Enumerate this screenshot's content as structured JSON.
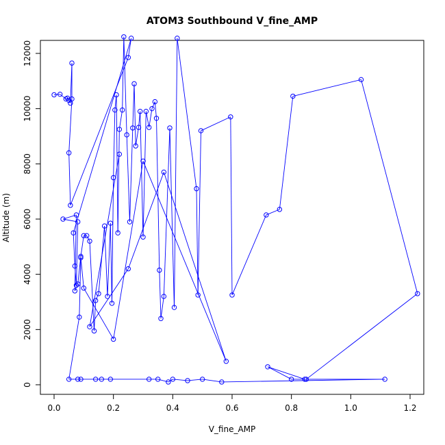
{
  "chart_data": {
    "type": "line",
    "title": "ATOM3 Southbound V_fine_AMP",
    "xlabel": "V_fine_AMP",
    "ylabel": "Altitude (m)",
    "xlim": [
      -0.05,
      1.25
    ],
    "ylim": [
      -500,
      13000
    ],
    "xticks": [
      "0.0",
      "0.2",
      "0.4",
      "0.6",
      "0.8",
      "1.0",
      "1.2"
    ],
    "yticks": [
      "0",
      "2000",
      "4000",
      "6000",
      "8000",
      "10000",
      "12000"
    ],
    "grid": false,
    "point_style": "open-circle",
    "colors": {
      "series": "#0000ff",
      "axis": "#000000",
      "background": "#ffffff"
    },
    "series": [
      {
        "x": [
          0.0,
          0.02,
          0.04,
          0.045,
          0.05,
          0.055,
          0.06,
          0.06,
          0.05,
          0.055,
          0.25,
          0.26,
          0.065,
          0.07,
          0.075,
          0.08,
          0.03,
          0.075,
          0.07,
          0.08,
          0.09,
          0.1,
          0.11,
          0.12,
          0.135,
          0.14,
          0.15,
          0.17,
          0.18,
          0.19,
          0.195,
          0.2,
          0.205,
          0.21,
          0.215,
          0.22,
          0.23,
          0.235,
          0.245,
          0.255,
          0.265,
          0.27,
          0.275,
          0.285,
          0.29,
          0.3,
          0.31,
          0.32,
          0.33,
          0.34,
          0.345,
          0.355,
          0.36,
          0.37,
          0.39,
          0.405,
          0.415,
          0.48,
          0.485,
          0.495,
          0.595,
          0.6,
          0.715,
          0.76,
          0.805,
          1.035,
          1.225,
          0.85,
          0.845,
          0.72,
          0.8,
          1.115,
          0.565,
          0.5,
          0.45,
          0.4,
          0.385,
          0.35,
          0.32,
          0.19,
          0.16,
          0.14,
          0.09,
          0.08,
          0.05,
          0.085,
          0.09,
          0.1,
          0.2,
          0.3,
          0.58,
          0.37,
          0.25,
          0.12,
          0.22
        ],
        "y": [
          10500,
          10520,
          10350,
          10380,
          10300,
          10200,
          11650,
          10350,
          8400,
          6500,
          11850,
          12550,
          5500,
          4300,
          3600,
          5900,
          6000,
          6150,
          3400,
          3650,
          4650,
          5400,
          5400,
          5200,
          1950,
          3050,
          3300,
          5750,
          3200,
          5850,
          2950,
          7500,
          9950,
          10500,
          5500,
          9250,
          9950,
          12600,
          9050,
          5900,
          9300,
          10900,
          8650,
          9320,
          9900,
          5350,
          9900,
          9320,
          10000,
          10250,
          9650,
          4150,
          2400,
          3200,
          9300,
          2800,
          12550,
          7100,
          3250,
          9200,
          9700,
          3250,
          6150,
          6350,
          10450,
          11050,
          3300,
          200,
          200,
          650,
          200,
          200,
          100,
          200,
          150,
          200,
          100,
          200,
          200,
          200,
          200,
          200,
          200,
          200,
          200,
          2450,
          4600,
          3500,
          1650,
          8100,
          850,
          7700,
          4200,
          2100,
          8350
        ]
      }
    ]
  }
}
